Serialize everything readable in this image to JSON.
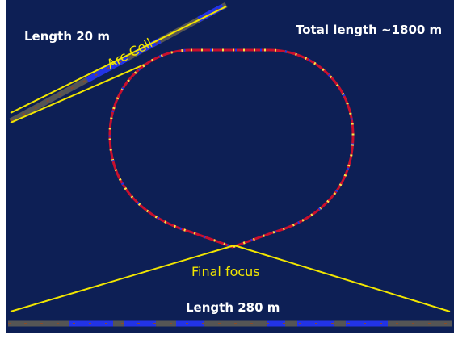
{
  "labels": {
    "cell_length": "Length 20 m",
    "total_length": "Total length ~1800 m",
    "arc_cell": "Arc Cell",
    "final_focus": "Final focus",
    "ff_length": "Length 280 m"
  },
  "colors": {
    "background": "#0d1f55",
    "annotation": "#f2e600",
    "text": "#ffffff",
    "ring_dipole": "#c8102e",
    "magnet_blue": "#2233e6",
    "magnet_yellow": "#f5e94a"
  }
}
